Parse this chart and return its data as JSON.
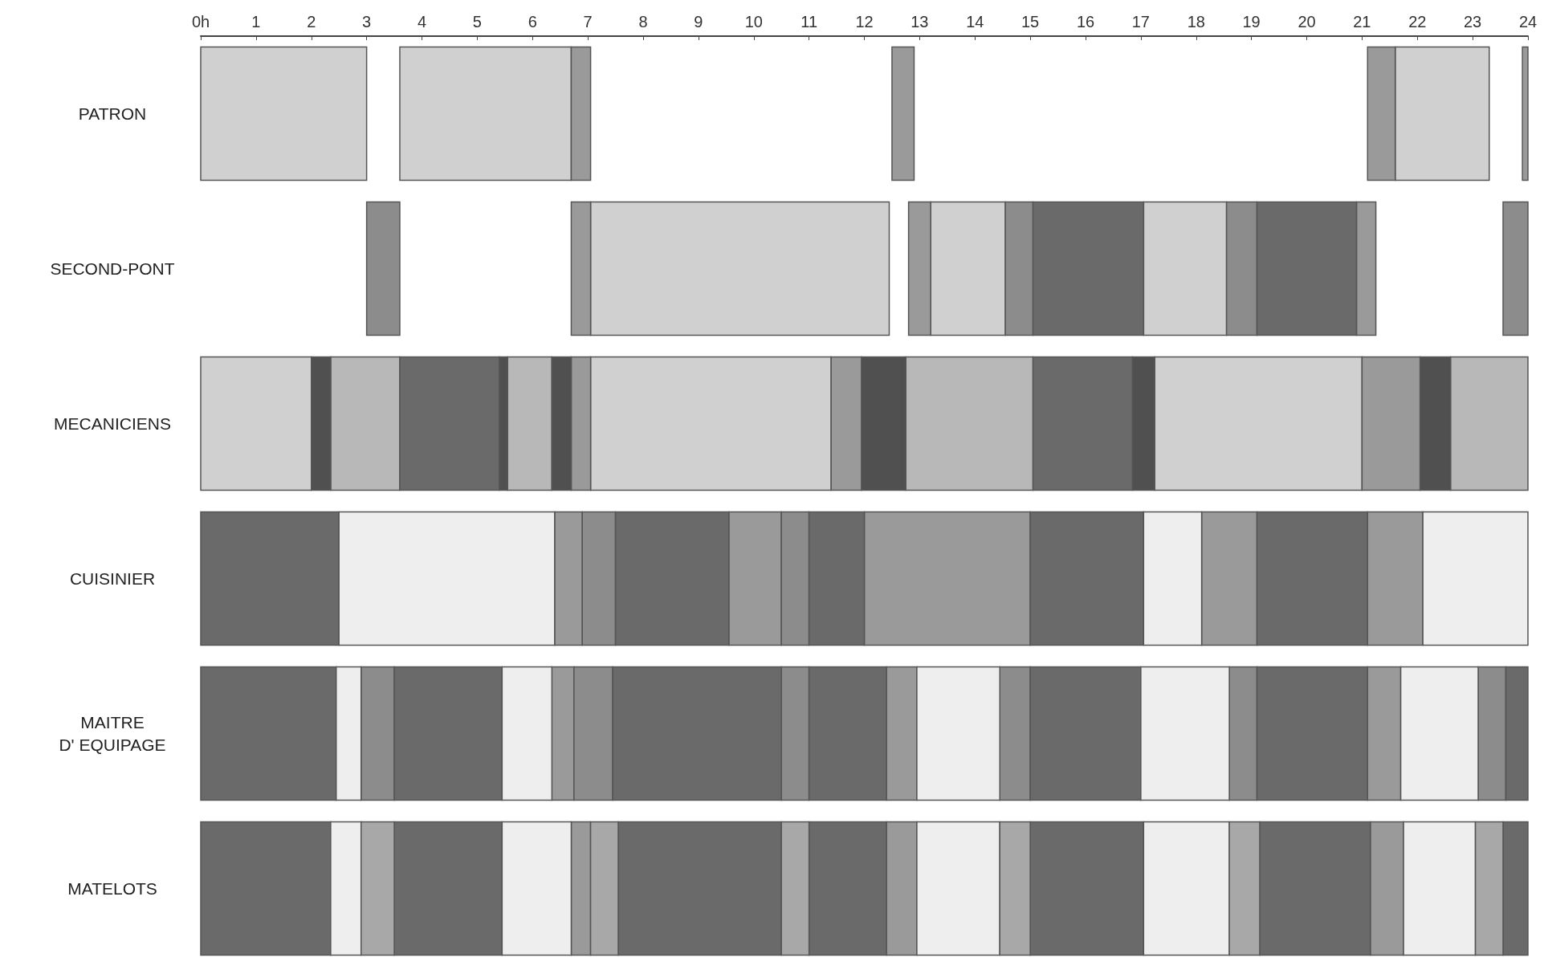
{
  "chart_data": {
    "type": "bar",
    "orientation": "horizontal",
    "categories": [
      "PATRON",
      "SECOND-PONT",
      "MECANICIENS",
      "CUISINIER",
      "MAITRE\nD' EQUIPAGE",
      "MATELOTS"
    ],
    "xlim": [
      0,
      24
    ],
    "xticks": [
      {
        "value": 0,
        "label": "0h"
      },
      1,
      2,
      3,
      4,
      5,
      6,
      7,
      8,
      9,
      10,
      11,
      12,
      13,
      14,
      15,
      16,
      17,
      18,
      19,
      20,
      21,
      22,
      23,
      24
    ],
    "grid": false,
    "series": [
      {
        "color": "#d0d0d0",
        "base": [
          0,
          7.05,
          0,
          null,
          null,
          null
        ],
        "values": [
          3.0,
          5.4,
          2.0,
          null,
          null,
          null
        ]
      },
      {
        "color": "#d0d0d0",
        "base": [
          3.6,
          13.2,
          7.05,
          null,
          null,
          null
        ],
        "values": [
          3.1,
          1.35,
          4.35,
          null,
          null,
          null
        ]
      },
      {
        "color": "#d0d0d0",
        "base": [
          21.6,
          17.05,
          17.25,
          null,
          null,
          null
        ],
        "values": [
          1.7,
          1.5,
          3.75,
          null,
          null,
          null
        ]
      },
      {
        "color": "#9a9a9a",
        "base": [
          6.7,
          6.7,
          6.7,
          6.4,
          6.35,
          6.7
        ],
        "values": [
          0.35,
          0.35,
          0.35,
          0.5,
          0.4,
          0.35
        ]
      },
      {
        "color": "#9a9a9a",
        "base": [
          12.5,
          12.8,
          11.4,
          9.55,
          12.4,
          12.4
        ],
        "values": [
          0.4,
          0.4,
          0.55,
          0.95,
          0.55,
          0.55
        ]
      },
      {
        "color": "#9a9a9a",
        "base": [
          21.1,
          20.9,
          21.0,
          12.0,
          21.1,
          21.15
        ],
        "values": [
          0.5,
          0.35,
          1.05,
          3.0,
          0.6,
          0.6
        ]
      },
      {
        "color": "#9a9a9a",
        "base": [
          23.9,
          null,
          null,
          18.1,
          null,
          null
        ],
        "values": [
          0.1,
          null,
          null,
          1.0,
          null,
          null
        ]
      },
      {
        "color": "#9a9a9a",
        "base": [
          null,
          null,
          null,
          21.1,
          null,
          null
        ],
        "values": [
          null,
          null,
          null,
          1.0,
          null,
          null
        ]
      },
      {
        "color": "#b8b8b8",
        "base": [
          null,
          null,
          2.35,
          null,
          null,
          null
        ],
        "values": [
          null,
          null,
          1.25,
          null,
          null,
          null
        ]
      },
      {
        "color": "#b8b8b8",
        "base": [
          null,
          null,
          5.55,
          null,
          null,
          null
        ],
        "values": [
          null,
          null,
          0.8,
          null,
          null,
          null
        ]
      },
      {
        "color": "#b8b8b8",
        "base": [
          null,
          null,
          12.75,
          null,
          null,
          null
        ],
        "values": [
          null,
          null,
          2.3,
          null,
          null,
          null
        ]
      },
      {
        "color": "#b8b8b8",
        "base": [
          null,
          null,
          22.6,
          null,
          null,
          null
        ],
        "values": [
          null,
          null,
          1.4,
          null,
          null,
          null
        ]
      },
      {
        "color": "#8c8c8c",
        "base": [
          null,
          3.0,
          null,
          6.9,
          2.9,
          null
        ],
        "values": [
          null,
          0.6,
          null,
          0.6,
          0.6,
          null
        ]
      },
      {
        "color": "#8c8c8c",
        "base": [
          null,
          14.55,
          null,
          10.5,
          6.75,
          null
        ],
        "values": [
          null,
          0.5,
          null,
          0.5,
          0.7,
          null
        ]
      },
      {
        "color": "#8c8c8c",
        "base": [
          null,
          18.55,
          null,
          null,
          10.5,
          null
        ],
        "values": [
          null,
          0.55,
          null,
          null,
          0.5,
          null
        ]
      },
      {
        "color": "#8c8c8c",
        "base": [
          null,
          23.55,
          null,
          null,
          14.45,
          null
        ],
        "values": [
          null,
          0.45,
          null,
          null,
          0.55,
          null
        ]
      },
      {
        "color": "#8c8c8c",
        "base": [
          null,
          null,
          null,
          null,
          18.6,
          null
        ],
        "values": [
          null,
          null,
          null,
          null,
          0.5,
          null
        ]
      },
      {
        "color": "#8c8c8c",
        "base": [
          null,
          null,
          null,
          null,
          23.1,
          null
        ],
        "values": [
          null,
          null,
          null,
          null,
          0.5,
          null
        ]
      },
      {
        "color": "#6a6a6a",
        "base": [
          null,
          15.05,
          3.6,
          0,
          0,
          0
        ],
        "values": [
          null,
          2.0,
          1.8,
          2.5,
          2.45,
          2.35
        ]
      },
      {
        "color": "#6a6a6a",
        "base": [
          null,
          19.1,
          15.05,
          7.5,
          3.5,
          3.5
        ],
        "values": [
          null,
          1.8,
          1.8,
          2.05,
          1.95,
          1.95
        ]
      },
      {
        "color": "#6a6a6a",
        "base": [
          null,
          null,
          null,
          11.0,
          7.45,
          7.55
        ],
        "values": [
          null,
          null,
          null,
          1.0,
          3.05,
          2.95
        ]
      },
      {
        "color": "#6a6a6a",
        "base": [
          null,
          null,
          null,
          15.0,
          11.0,
          11.0
        ],
        "values": [
          null,
          null,
          null,
          2.05,
          1.4,
          1.4
        ]
      },
      {
        "color": "#6a6a6a",
        "base": [
          null,
          null,
          null,
          19.1,
          15.0,
          15.0
        ],
        "values": [
          null,
          null,
          null,
          2.0,
          2.0,
          2.05
        ]
      },
      {
        "color": "#6a6a6a",
        "base": [
          null,
          null,
          null,
          null,
          19.1,
          19.15
        ],
        "values": [
          null,
          null,
          null,
          null,
          2.0,
          2.0
        ]
      },
      {
        "color": "#6a6a6a",
        "base": [
          null,
          null,
          null,
          null,
          23.6,
          23.55
        ],
        "values": [
          null,
          null,
          null,
          null,
          0.4,
          0.45
        ]
      },
      {
        "color": "#eeeeee",
        "base": [
          null,
          null,
          null,
          2.5,
          2.45,
          2.35
        ],
        "values": [
          null,
          null,
          null,
          3.9,
          0.45,
          0.55
        ]
      },
      {
        "color": "#eeeeee",
        "base": [
          null,
          null,
          null,
          17.05,
          5.45,
          5.45
        ],
        "values": [
          null,
          null,
          null,
          1.05,
          0.9,
          1.25
        ]
      },
      {
        "color": "#eeeeee",
        "base": [
          null,
          null,
          null,
          22.1,
          12.95,
          12.95
        ],
        "values": [
          null,
          null,
          null,
          1.9,
          1.5,
          1.5
        ]
      },
      {
        "color": "#eeeeee",
        "base": [
          null,
          null,
          null,
          null,
          17.0,
          17.05
        ],
        "values": [
          null,
          null,
          null,
          null,
          1.6,
          1.55
        ]
      },
      {
        "color": "#eeeeee",
        "base": [
          null,
          null,
          null,
          null,
          21.7,
          21.75
        ],
        "values": [
          null,
          null,
          null,
          null,
          1.4,
          1.3
        ]
      },
      {
        "color": "#505050",
        "base": [
          null,
          null,
          2.0,
          null,
          null,
          null
        ],
        "values": [
          null,
          null,
          0.35,
          null,
          null,
          null
        ]
      },
      {
        "color": "#505050",
        "base": [
          null,
          null,
          5.4,
          null,
          null,
          null
        ],
        "values": [
          null,
          null,
          0.15,
          null,
          null,
          null
        ]
      },
      {
        "color": "#505050",
        "base": [
          null,
          null,
          6.35,
          null,
          null,
          null
        ],
        "values": [
          null,
          null,
          0.35,
          null,
          null,
          null
        ]
      },
      {
        "color": "#505050",
        "base": [
          null,
          null,
          11.95,
          null,
          null,
          null
        ],
        "values": [
          null,
          null,
          0.8,
          null,
          null,
          null
        ]
      },
      {
        "color": "#505050",
        "base": [
          null,
          null,
          16.85,
          null,
          null,
          null
        ],
        "values": [
          null,
          null,
          0.4,
          null,
          null,
          null
        ]
      },
      {
        "color": "#505050",
        "base": [
          null,
          null,
          22.05,
          null,
          null,
          null
        ],
        "values": [
          null,
          null,
          0.55,
          null,
          null,
          null
        ]
      },
      {
        "color": "#a8a8a8",
        "base": [
          null,
          null,
          null,
          null,
          null,
          2.9
        ],
        "values": [
          null,
          null,
          null,
          null,
          null,
          0.6
        ]
      },
      {
        "color": "#a8a8a8",
        "base": [
          null,
          null,
          null,
          null,
          null,
          7.05
        ],
        "values": [
          null,
          null,
          null,
          null,
          null,
          0.5
        ]
      },
      {
        "color": "#a8a8a8",
        "base": [
          null,
          null,
          null,
          null,
          null,
          10.5
        ],
        "values": [
          null,
          null,
          null,
          null,
          null,
          0.5
        ]
      },
      {
        "color": "#a8a8a8",
        "base": [
          null,
          null,
          null,
          null,
          null,
          14.45
        ],
        "values": [
          null,
          null,
          null,
          null,
          null,
          0.55
        ]
      },
      {
        "color": "#a8a8a8",
        "base": [
          null,
          null,
          null,
          null,
          null,
          18.6
        ],
        "values": [
          null,
          null,
          null,
          null,
          null,
          0.55
        ]
      },
      {
        "color": "#a8a8a8",
        "base": [
          null,
          null,
          null,
          null,
          null,
          23.05
        ],
        "values": [
          null,
          null,
          null,
          null,
          null,
          0.5
        ]
      }
    ]
  }
}
